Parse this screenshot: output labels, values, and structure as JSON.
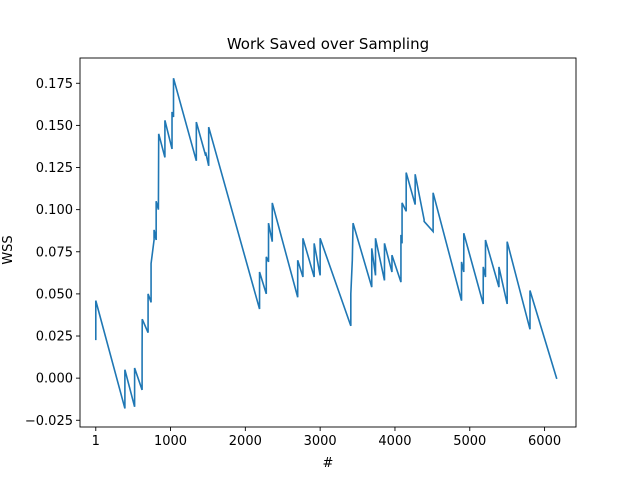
{
  "chart_data": {
    "type": "line",
    "title": "Work Saved over Sampling",
    "xlabel": "#",
    "ylabel": "WSS",
    "xlim": [
      -210,
      6420
    ],
    "ylim": [
      -0.029,
      0.19
    ],
    "xticks": [
      {
        "value": 1,
        "label": "1"
      },
      {
        "value": 1000,
        "label": "1000"
      },
      {
        "value": 2000,
        "label": "2000"
      },
      {
        "value": 3000,
        "label": "3000"
      },
      {
        "value": 4000,
        "label": "4000"
      },
      {
        "value": 5000,
        "label": "5000"
      },
      {
        "value": 6000,
        "label": "6000"
      }
    ],
    "yticks": [
      {
        "value": -0.025,
        "label": "−0.025"
      },
      {
        "value": 0.0,
        "label": "0.000"
      },
      {
        "value": 0.025,
        "label": "0.025"
      },
      {
        "value": 0.05,
        "label": "0.050"
      },
      {
        "value": 0.075,
        "label": "0.075"
      },
      {
        "value": 0.1,
        "label": "0.100"
      },
      {
        "value": 0.125,
        "label": "0.125"
      },
      {
        "value": 0.15,
        "label": "0.150"
      },
      {
        "value": 0.175,
        "label": "0.175"
      }
    ],
    "color": "#1f77b4",
    "series": [
      {
        "name": "WSS",
        "points": [
          [
            1,
            0.023
          ],
          [
            1,
            0.046
          ],
          [
            390,
            -0.018
          ],
          [
            390,
            0.005
          ],
          [
            520,
            -0.017
          ],
          [
            520,
            0.006
          ],
          [
            620,
            -0.007
          ],
          [
            620,
            0.014
          ],
          [
            622,
            0.035
          ],
          [
            700,
            0.027
          ],
          [
            700,
            0.05
          ],
          [
            740,
            0.045
          ],
          [
            740,
            0.068
          ],
          [
            780,
            0.082
          ],
          [
            780,
            0.088
          ],
          [
            808,
            0.082
          ],
          [
            808,
            0.105
          ],
          [
            838,
            0.1
          ],
          [
            840,
            0.123
          ],
          [
            842,
            0.145
          ],
          [
            925,
            0.131
          ],
          [
            925,
            0.153
          ],
          [
            1020,
            0.136
          ],
          [
            1020,
            0.158
          ],
          [
            1040,
            0.155
          ],
          [
            1040,
            0.178
          ],
          [
            1345,
            0.129
          ],
          [
            1345,
            0.152
          ],
          [
            1470,
            0.132
          ],
          [
            1470,
            0.134
          ],
          [
            1510,
            0.126
          ],
          [
            1510,
            0.149
          ],
          [
            2190,
            0.041
          ],
          [
            2190,
            0.063
          ],
          [
            2280,
            0.05
          ],
          [
            2280,
            0.072
          ],
          [
            2310,
            0.069
          ],
          [
            2310,
            0.092
          ],
          [
            2360,
            0.081
          ],
          [
            2360,
            0.104
          ],
          [
            2700,
            0.048
          ],
          [
            2700,
            0.07
          ],
          [
            2770,
            0.06
          ],
          [
            2770,
            0.083
          ],
          [
            2920,
            0.06
          ],
          [
            2920,
            0.08
          ],
          [
            3000,
            0.061
          ],
          [
            3000,
            0.083
          ],
          [
            3410,
            0.031
          ],
          [
            3410,
            0.05
          ],
          [
            3430,
            0.07
          ],
          [
            3440,
            0.092
          ],
          [
            3690,
            0.054
          ],
          [
            3690,
            0.077
          ],
          [
            3740,
            0.061
          ],
          [
            3740,
            0.083
          ],
          [
            3860,
            0.058
          ],
          [
            3860,
            0.08
          ],
          [
            3960,
            0.063
          ],
          [
            3960,
            0.073
          ],
          [
            4080,
            0.057
          ],
          [
            4080,
            0.085
          ],
          [
            4095,
            0.08
          ],
          [
            4095,
            0.104
          ],
          [
            4150,
            0.099
          ],
          [
            4150,
            0.122
          ],
          [
            4270,
            0.103
          ],
          [
            4270,
            0.121
          ],
          [
            4390,
            0.094
          ],
          [
            4390,
            0.093
          ],
          [
            4510,
            0.087
          ],
          [
            4510,
            0.11
          ],
          [
            4890,
            0.046
          ],
          [
            4890,
            0.069
          ],
          [
            4920,
            0.063
          ],
          [
            4920,
            0.086
          ],
          [
            5180,
            0.044
          ],
          [
            5180,
            0.066
          ],
          [
            5210,
            0.06
          ],
          [
            5210,
            0.082
          ],
          [
            5390,
            0.054
          ],
          [
            5390,
            0.066
          ],
          [
            5500,
            0.044
          ],
          [
            5500,
            0.081
          ],
          [
            5805,
            0.029
          ],
          [
            5805,
            0.052
          ],
          [
            6160,
            0.0
          ]
        ]
      }
    ]
  }
}
